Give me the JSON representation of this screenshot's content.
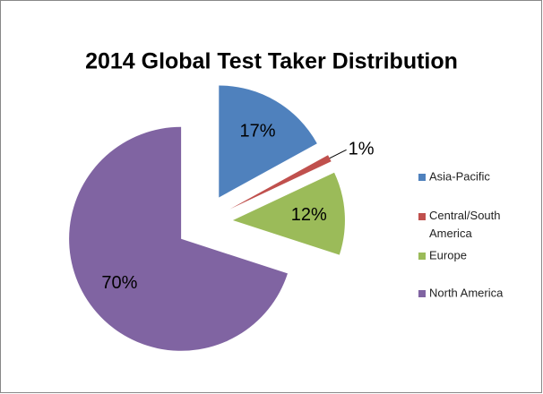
{
  "chart_data": {
    "type": "pie",
    "title": "2014 Global Test Taker Distribution",
    "categories": [
      "Asia-Pacific",
      "Central/South America",
      "Europe",
      "North America"
    ],
    "values": [
      17,
      1,
      12,
      70
    ],
    "value_labels": [
      "17%",
      "1%",
      "12%",
      "70%"
    ],
    "colors": [
      "#4f81bd",
      "#c0504d",
      "#9bbb59",
      "#8064a2"
    ],
    "legend": "right"
  }
}
